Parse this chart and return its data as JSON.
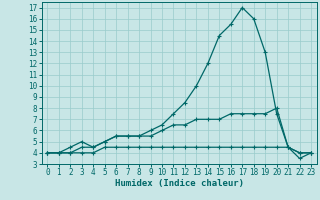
{
  "title": "",
  "xlabel": "Humidex (Indice chaleur)",
  "xlim": [
    -0.5,
    23.5
  ],
  "ylim": [
    3,
    17.5
  ],
  "xticks": [
    0,
    1,
    2,
    3,
    4,
    5,
    6,
    7,
    8,
    9,
    10,
    11,
    12,
    13,
    14,
    15,
    16,
    17,
    18,
    19,
    20,
    21,
    22,
    23
  ],
  "yticks": [
    3,
    4,
    5,
    6,
    7,
    8,
    9,
    10,
    11,
    12,
    13,
    14,
    15,
    16,
    17
  ],
  "bg_color": "#c8e6e6",
  "line_color": "#006868",
  "grid_color": "#99cccc",
  "line1_x": [
    0,
    1,
    2,
    3,
    4,
    5,
    6,
    7,
    8,
    9,
    10,
    11,
    12,
    13,
    14,
    15,
    16,
    17,
    18,
    19,
    20,
    21,
    22,
    23
  ],
  "line1_y": [
    4,
    4,
    4.5,
    5,
    4.5,
    5,
    5.5,
    5.5,
    5.5,
    6,
    6.5,
    7.5,
    8.5,
    10,
    12,
    14.5,
    15.5,
    17,
    16,
    13,
    7.5,
    4.5,
    3.5,
    4
  ],
  "line2_x": [
    0,
    1,
    2,
    3,
    4,
    5,
    6,
    7,
    8,
    9,
    10,
    11,
    12,
    13,
    14,
    15,
    16,
    17,
    18,
    19,
    20,
    21,
    22,
    23
  ],
  "line2_y": [
    4,
    4,
    4,
    4.5,
    4.5,
    5,
    5.5,
    5.5,
    5.5,
    5.5,
    6,
    6.5,
    6.5,
    7,
    7,
    7,
    7.5,
    7.5,
    7.5,
    7.5,
    8,
    4.5,
    4,
    4
  ],
  "line3_x": [
    0,
    1,
    2,
    3,
    4,
    5,
    6,
    7,
    8,
    9,
    10,
    11,
    12,
    13,
    14,
    15,
    16,
    17,
    18,
    19,
    20,
    21,
    22,
    23
  ],
  "line3_y": [
    4,
    4,
    4,
    4,
    4,
    4.5,
    4.5,
    4.5,
    4.5,
    4.5,
    4.5,
    4.5,
    4.5,
    4.5,
    4.5,
    4.5,
    4.5,
    4.5,
    4.5,
    4.5,
    4.5,
    4.5,
    4,
    4
  ],
  "tick_fontsize": 5.5,
  "xlabel_fontsize": 6.5,
  "marker_size": 3,
  "linewidth": 0.9
}
